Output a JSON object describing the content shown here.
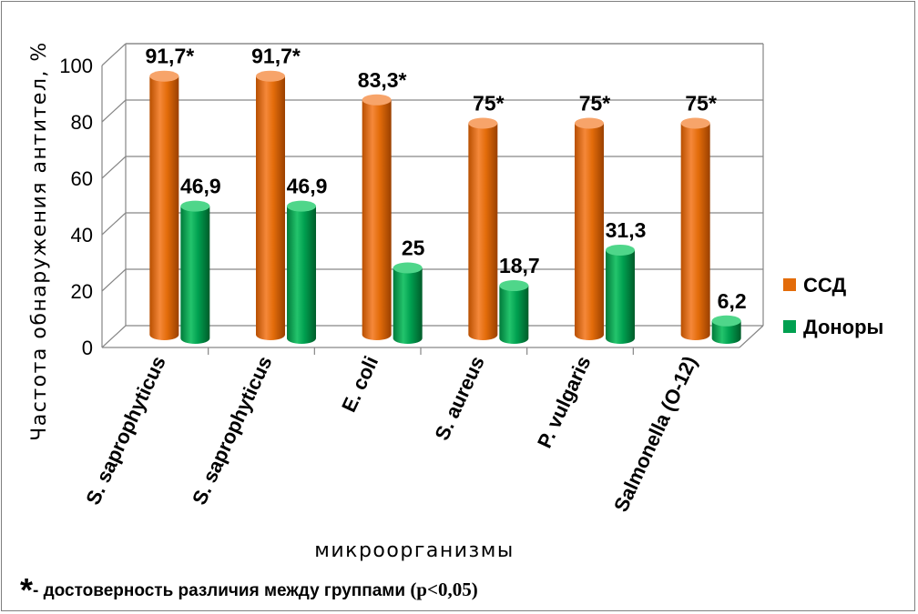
{
  "chart_data": {
    "type": "bar",
    "categories": [
      "S. saprophyticus",
      "S. saprophyticus",
      "E. coli",
      "S. aureus",
      "P. vulgaris",
      "Salmonella (O-12)"
    ],
    "series": [
      {
        "name": "ССД",
        "values": [
          91.7,
          91.7,
          83.3,
          75,
          75,
          75
        ],
        "labels": [
          "91,7*",
          "91,7*",
          "83,3*",
          "75*",
          "75*",
          "75*"
        ],
        "color": "#e36c0a"
      },
      {
        "name": "Доноры",
        "values": [
          46.9,
          46.9,
          25,
          18.7,
          31.3,
          6.2
        ],
        "labels": [
          "46,9",
          "46,9",
          "25",
          "18,7",
          "31,3",
          "6,2"
        ],
        "color": "#00a050"
      }
    ],
    "ylim": [
      0,
      100
    ],
    "yticks": [
      "0",
      "20",
      "40",
      "60",
      "80",
      "100"
    ],
    "ylabel": "Частота обнаружения антител, %",
    "xlabel": "микроорганизмы",
    "grid": true,
    "legend_position": "right",
    "style": "3d-cylinder"
  },
  "footnote": {
    "star": "*",
    "text": "- достоверность различия между группами ",
    "p_value": "(p<0,05)"
  }
}
